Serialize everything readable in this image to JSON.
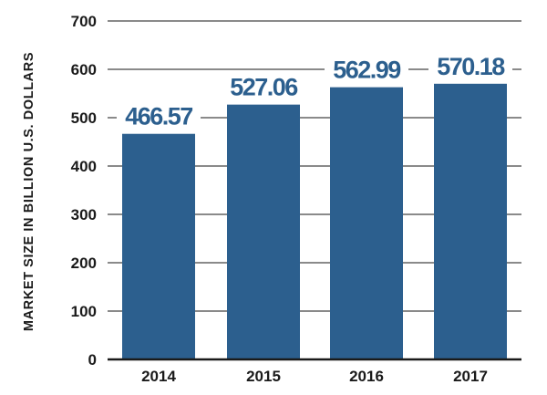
{
  "chart_data": {
    "type": "bar",
    "categories": [
      "2014",
      "2015",
      "2016",
      "2017"
    ],
    "values": [
      466.57,
      527.06,
      562.99,
      570.18
    ],
    "value_labels": [
      "466.57",
      "527.06",
      "562.99",
      "570.18"
    ],
    "ylabel": "MARKET SIZE IN BILLION U.S. DOLLARS",
    "xlabel": "",
    "ylim": [
      0,
      700
    ],
    "yticks": [
      0,
      100,
      200,
      300,
      400,
      500,
      600,
      700
    ],
    "grid": true,
    "legend": "none",
    "colors": {
      "bar": "#2c5f8e",
      "grid": "#8a8a8a",
      "axis": "#1a1a1a",
      "value_text": "#2c5f8e"
    }
  }
}
